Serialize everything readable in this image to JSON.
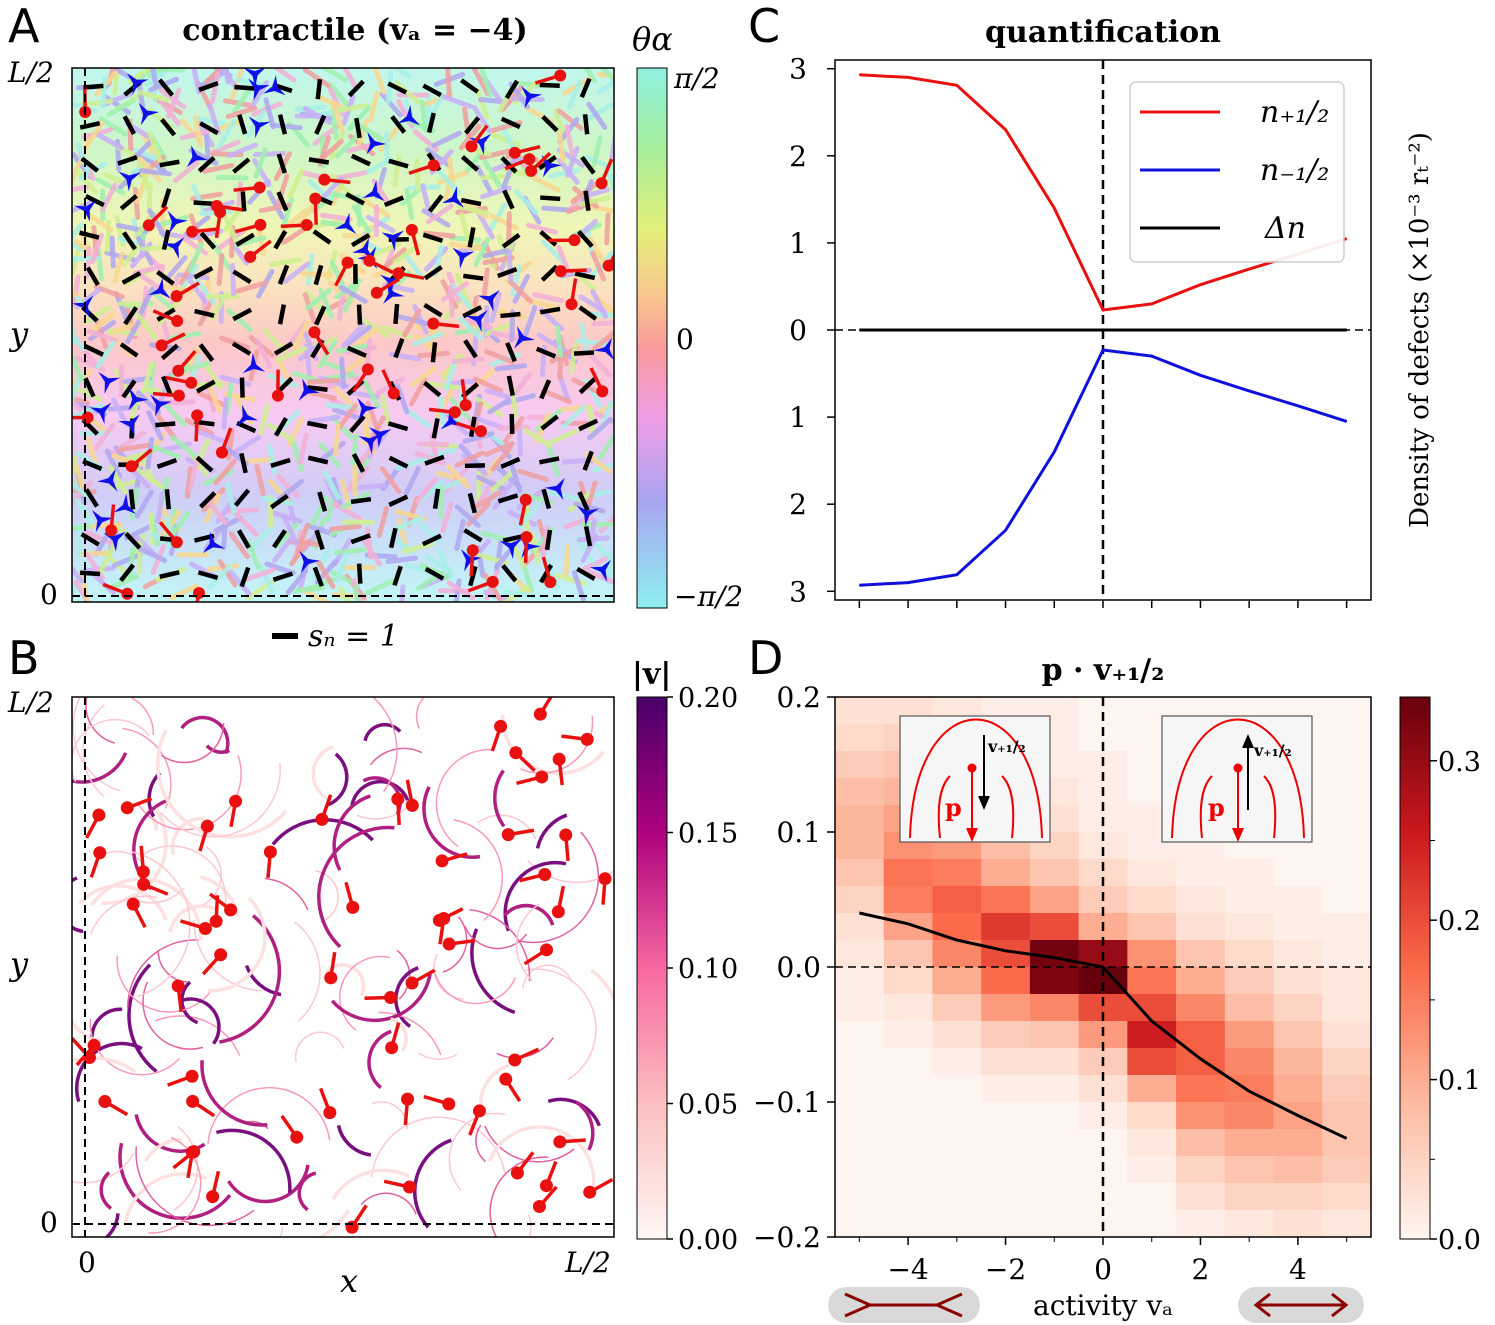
{
  "panels": {
    "A": {
      "letter": "A",
      "title": "contractile (vₐ = −4)",
      "y_label": "y",
      "y_ticks": [
        "L/2",
        "0"
      ],
      "scale_label": "sₙ = 1",
      "colorbar": {
        "label": "θα",
        "ticks": [
          "π/2",
          "0",
          "−π/2"
        ]
      }
    },
    "B": {
      "letter": "B",
      "x_label": "x",
      "y_label": "y",
      "x_ticks": [
        "0",
        "L/2"
      ],
      "y_ticks": [
        "L/2",
        "0"
      ],
      "colorbar": {
        "label": "|v|",
        "ticks": [
          "0.20",
          "0.15",
          "0.10",
          "0.05",
          "0.00"
        ]
      }
    },
    "C": {
      "letter": "C",
      "title": "quantification",
      "ylabel": "Density of defects (×10⁻³ rₜ⁻²)",
      "y_tick_labels": [
        "3",
        "2",
        "1",
        "0",
        "1",
        "2",
        "3"
      ]
    },
    "D": {
      "letter": "D",
      "title": "p · v₊₁/₂",
      "xlabel": "activity vₐ",
      "x_tick_labels": [
        "−4",
        "−2",
        "0",
        "2",
        "4"
      ],
      "y_tick_labels": [
        "0.2",
        "0.1",
        "0.0",
        "−0.1",
        "−0.2"
      ],
      "colorbar_ticks": [
        "0.3",
        "0.2",
        "0.1",
        "0.0"
      ],
      "inset_labels": {
        "p": "p",
        "v": "v₊₁/₂"
      }
    }
  },
  "chart_data": [
    {
      "panel": "C",
      "type": "line",
      "title": "quantification",
      "xlabel": "",
      "ylabel": "Density of defects (×10⁻³ rₜ⁻²)",
      "x": [
        -5,
        -4,
        -3,
        -2,
        -1,
        0,
        1,
        2,
        3,
        4,
        5
      ],
      "ylim": [
        -3.1,
        3.1
      ],
      "xlim": [
        -5.5,
        5.5
      ],
      "series": [
        {
          "name": "n₊₁/₂",
          "color": "#e8110f",
          "values": [
            2.93,
            2.9,
            2.81,
            2.3,
            1.4,
            0.23,
            0.3,
            0.52,
            0.7,
            0.87,
            1.05
          ]
        },
        {
          "name": "n₋₁/₂",
          "color": "#1010dd",
          "values": [
            -2.93,
            -2.9,
            -2.81,
            -2.3,
            -1.4,
            -0.23,
            -0.3,
            -0.52,
            -0.7,
            -0.87,
            -1.05
          ]
        },
        {
          "name": "Δn",
          "color": "#000000",
          "values": [
            0,
            0,
            0,
            0,
            0,
            0,
            0,
            0,
            0,
            0,
            0
          ]
        }
      ],
      "legend_position": "top-right",
      "vertical_line_x": 0
    },
    {
      "panel": "D",
      "type": "heatmap",
      "title": "p · v₊₁/₂",
      "xlabel": "activity vₐ",
      "ylabel": "",
      "xlim": [
        -5.5,
        5.5
      ],
      "ylim": [
        -0.2,
        0.2
      ],
      "color_range": [
        0,
        0.34
      ],
      "colormap": "Reds",
      "x_centers": [
        -5,
        -4,
        -3,
        -2,
        -1,
        0,
        1,
        2,
        3,
        4,
        5
      ],
      "y_centers": [
        0.19,
        0.17,
        0.15,
        0.13,
        0.11,
        0.09,
        0.07,
        0.05,
        0.03,
        0.01,
        -0.01,
        -0.03,
        -0.05,
        -0.07,
        -0.09,
        -0.11,
        -0.13,
        -0.15,
        -0.17,
        -0.19
      ],
      "values": [
        [
          0.03,
          0.03,
          0.02,
          0.01,
          0.01,
          0.0,
          0.0,
          0.0,
          0.0,
          0.0,
          0.0
        ],
        [
          0.04,
          0.05,
          0.03,
          0.02,
          0.01,
          0.0,
          0.0,
          0.0,
          0.0,
          0.0,
          0.0
        ],
        [
          0.06,
          0.07,
          0.05,
          0.03,
          0.01,
          0.01,
          0.0,
          0.0,
          0.0,
          0.0,
          0.0
        ],
        [
          0.08,
          0.09,
          0.07,
          0.04,
          0.02,
          0.01,
          0.0,
          0.0,
          0.0,
          0.0,
          0.0
        ],
        [
          0.09,
          0.11,
          0.09,
          0.06,
          0.03,
          0.01,
          0.01,
          0.0,
          0.0,
          0.0,
          0.0
        ],
        [
          0.09,
          0.13,
          0.12,
          0.08,
          0.05,
          0.02,
          0.01,
          0.01,
          0.0,
          0.0,
          0.0
        ],
        [
          0.07,
          0.16,
          0.15,
          0.1,
          0.07,
          0.04,
          0.02,
          0.01,
          0.01,
          0.0,
          0.0
        ],
        [
          0.05,
          0.15,
          0.18,
          0.16,
          0.11,
          0.06,
          0.04,
          0.02,
          0.01,
          0.01,
          0.0
        ],
        [
          0.03,
          0.11,
          0.17,
          0.22,
          0.2,
          0.1,
          0.07,
          0.03,
          0.02,
          0.01,
          0.01
        ],
        [
          0.02,
          0.07,
          0.14,
          0.2,
          0.33,
          0.3,
          0.13,
          0.07,
          0.04,
          0.02,
          0.01
        ],
        [
          0.01,
          0.04,
          0.1,
          0.17,
          0.32,
          0.34,
          0.16,
          0.1,
          0.06,
          0.03,
          0.02
        ],
        [
          0.01,
          0.02,
          0.06,
          0.12,
          0.14,
          0.2,
          0.2,
          0.14,
          0.08,
          0.05,
          0.02
        ],
        [
          0.0,
          0.01,
          0.03,
          0.06,
          0.07,
          0.12,
          0.25,
          0.18,
          0.12,
          0.07,
          0.03
        ],
        [
          0.0,
          0.0,
          0.01,
          0.03,
          0.03,
          0.06,
          0.2,
          0.18,
          0.14,
          0.09,
          0.05
        ],
        [
          0.0,
          0.0,
          0.0,
          0.01,
          0.01,
          0.03,
          0.1,
          0.16,
          0.15,
          0.1,
          0.06
        ],
        [
          0.0,
          0.0,
          0.0,
          0.0,
          0.0,
          0.01,
          0.04,
          0.13,
          0.14,
          0.11,
          0.07
        ],
        [
          0.0,
          0.0,
          0.0,
          0.0,
          0.0,
          0.0,
          0.02,
          0.08,
          0.1,
          0.1,
          0.07
        ],
        [
          0.0,
          0.0,
          0.0,
          0.0,
          0.0,
          0.0,
          0.01,
          0.05,
          0.07,
          0.08,
          0.06
        ],
        [
          0.0,
          0.0,
          0.0,
          0.0,
          0.0,
          0.0,
          0.0,
          0.03,
          0.05,
          0.05,
          0.04
        ],
        [
          0.0,
          0.0,
          0.0,
          0.0,
          0.0,
          0.0,
          0.0,
          0.01,
          0.02,
          0.03,
          0.02
        ]
      ],
      "mean_line": {
        "x": [
          -5,
          -4,
          -3,
          -2,
          -1,
          0,
          1,
          2,
          3,
          4,
          5
        ],
        "y": [
          0.04,
          0.032,
          0.02,
          0.012,
          0.007,
          0.0,
          -0.04,
          -0.068,
          -0.092,
          -0.11,
          -0.127
        ]
      }
    }
  ]
}
